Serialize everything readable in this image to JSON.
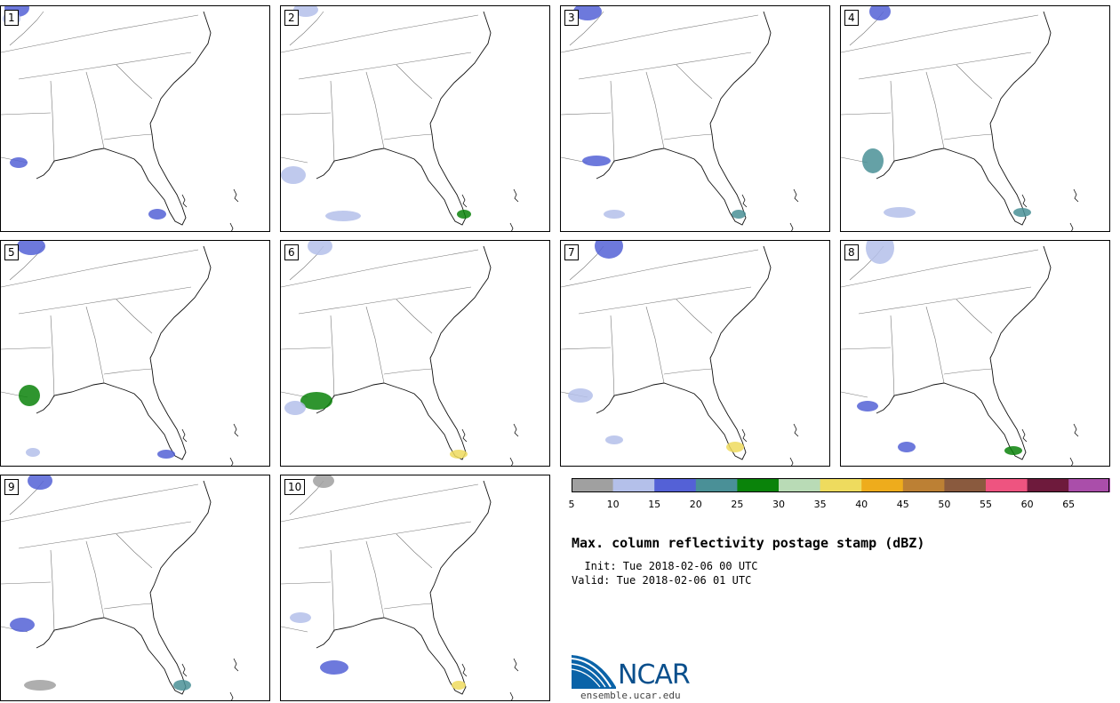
{
  "panels": [
    {
      "label": "1"
    },
    {
      "label": "2"
    },
    {
      "label": "3"
    },
    {
      "label": "4"
    },
    {
      "label": "5"
    },
    {
      "label": "6"
    },
    {
      "label": "7"
    },
    {
      "label": "8"
    },
    {
      "label": "9"
    },
    {
      "label": "10"
    }
  ],
  "colorbar": {
    "colors": [
      "#a0a0a0",
      "#b4c0ea",
      "#5461d6",
      "#4a9097",
      "#0a830a",
      "#b9dbb6",
      "#eedb5e",
      "#eeac1c",
      "#bc8034",
      "#8a5a3e",
      "#ee5480",
      "#6e1a3c",
      "#aa4eaa"
    ],
    "ticks": [
      "5",
      "10",
      "15",
      "20",
      "25",
      "30",
      "35",
      "40",
      "45",
      "50",
      "55",
      "60",
      "65"
    ]
  },
  "title": "Max. column reflectivity postage stamp (dBZ)",
  "init": "  Init: Tue 2018-02-06 00 UTC",
  "valid": "Valid: Tue 2018-02-06 01 UTC",
  "logo": {
    "name": "NCAR",
    "url": "ensemble.ucar.edu"
  }
}
